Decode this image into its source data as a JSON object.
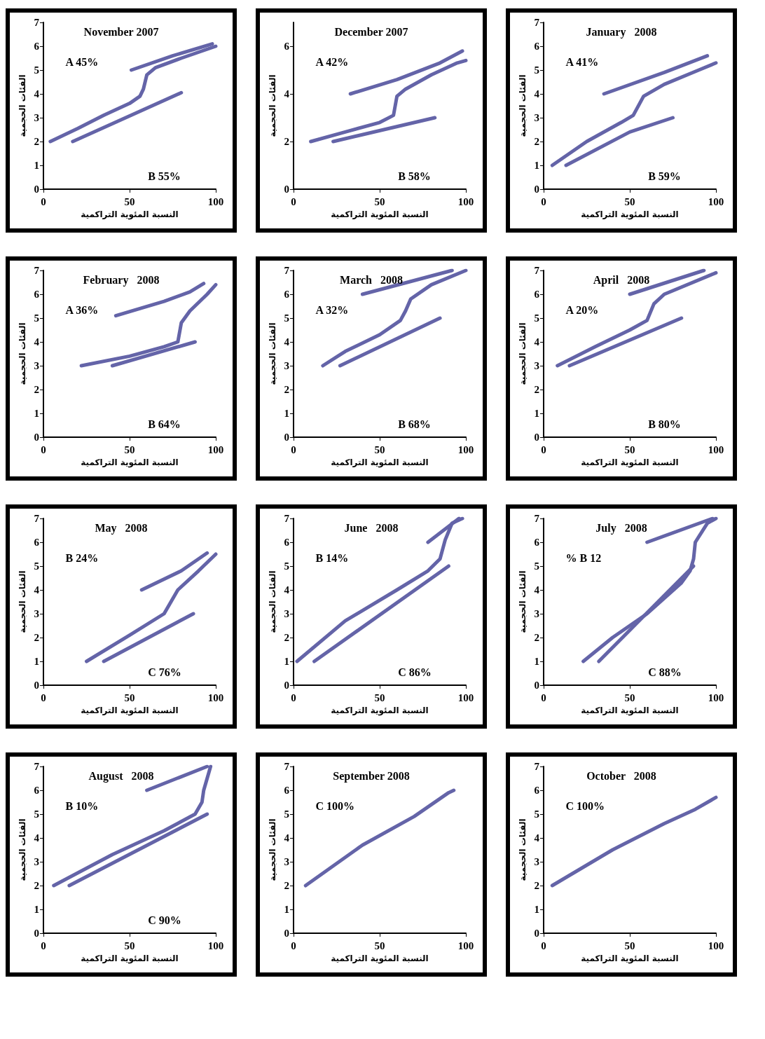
{
  "chart_data": [
    {
      "type": "line",
      "title": "November 2007",
      "xlabel": "النسبة المئوية التراكمية",
      "ylabel": "الفئات الحجمية",
      "annotations": [
        "A 45%",
        "B 55%"
      ],
      "xlim": [
        0,
        100
      ],
      "xticks": [
        0,
        50,
        100
      ],
      "ylim": [
        0,
        7
      ],
      "yticks": [
        0,
        1,
        2,
        3,
        4,
        5,
        6,
        7
      ],
      "grid": false,
      "marker": "none",
      "line_style": "solid",
      "series": [
        {
          "color": "#6464a8",
          "x": [
            4,
            20,
            35,
            50,
            56,
            58,
            60,
            65,
            80,
            100
          ],
          "values": [
            2,
            2.55,
            3.1,
            3.6,
            3.9,
            4.2,
            4.8,
            5.1,
            5.5,
            6
          ]
        },
        {
          "color": "#6464a8",
          "x": [
            51,
            75,
            98
          ],
          "values": [
            5,
            5.6,
            6.1
          ]
        },
        {
          "color": "#6464a8",
          "x": [
            17,
            80
          ],
          "values": [
            2,
            4.05
          ]
        }
      ]
    },
    {
      "type": "line",
      "title": "December 2007",
      "xlabel": "النسبة المئوية التراكمية",
      "ylabel": "الفئات الحجمية",
      "annotations": [
        "A 42%",
        "B 58%"
      ],
      "xlim": [
        0,
        100
      ],
      "xticks": [
        0,
        50,
        100
      ],
      "ylim": [
        0,
        7
      ],
      "yticks": [
        0,
        2,
        4,
        6
      ],
      "grid": false,
      "marker": "none",
      "line_style": "solid",
      "series": [
        {
          "color": "#6464a8",
          "x": [
            10,
            30,
            50,
            58,
            60,
            65,
            80,
            95,
            100
          ],
          "values": [
            2,
            2.4,
            2.8,
            3.1,
            3.9,
            4.2,
            4.8,
            5.3,
            5.4
          ]
        },
        {
          "color": "#6464a8",
          "x": [
            33,
            60,
            85,
            98
          ],
          "values": [
            4,
            4.6,
            5.3,
            5.8
          ]
        },
        {
          "color": "#6464a8",
          "x": [
            23,
            82
          ],
          "values": [
            2,
            3
          ]
        }
      ]
    },
    {
      "type": "line",
      "title": "January   2008",
      "xlabel": "النسبة المئوية التراكمية",
      "ylabel": "الفئات الحجمية",
      "annotations": [
        "A 41%",
        "B 59%"
      ],
      "xlim": [
        0,
        100
      ],
      "xticks": [
        0,
        50,
        100
      ],
      "ylim": [
        0,
        7
      ],
      "yticks": [
        0,
        1,
        2,
        3,
        4,
        5,
        6,
        7
      ],
      "grid": false,
      "marker": "none",
      "line_style": "solid",
      "series": [
        {
          "color": "#6464a8",
          "x": [
            5,
            25,
            45,
            52,
            58,
            70,
            90,
            100
          ],
          "values": [
            1,
            2,
            2.8,
            3.1,
            3.9,
            4.4,
            5,
            5.3
          ]
        },
        {
          "color": "#6464a8",
          "x": [
            35,
            70,
            95
          ],
          "values": [
            4,
            4.9,
            5.6
          ]
        },
        {
          "color": "#6464a8",
          "x": [
            13,
            50,
            75
          ],
          "values": [
            1,
            2.4,
            3
          ]
        }
      ]
    },
    {
      "type": "line",
      "title": "February   2008",
      "xlabel": "النسبة المئوية التراكمية",
      "ylabel": "الفئات الحجمية",
      "annotations": [
        "A 36%",
        "B 64%"
      ],
      "xlim": [
        0,
        100
      ],
      "xticks": [
        0,
        50,
        100
      ],
      "ylim": [
        0,
        7
      ],
      "yticks": [
        0,
        1,
        2,
        3,
        4,
        5,
        6,
        7
      ],
      "grid": false,
      "marker": "none",
      "line_style": "solid",
      "series": [
        {
          "color": "#6464a8",
          "x": [
            22,
            50,
            70,
            78,
            80,
            85,
            95,
            100
          ],
          "values": [
            3,
            3.4,
            3.8,
            4,
            4.8,
            5.3,
            6,
            6.4
          ]
        },
        {
          "color": "#6464a8",
          "x": [
            42,
            70,
            85,
            93
          ],
          "values": [
            5.1,
            5.7,
            6.1,
            6.45
          ]
        },
        {
          "color": "#6464a8",
          "x": [
            40,
            88
          ],
          "values": [
            3,
            4
          ]
        }
      ]
    },
    {
      "type": "line",
      "title": "March   2008",
      "xlabel": "النسبة المئوية التراكمية",
      "ylabel": "الفئات الحجمية",
      "annotations": [
        "A 32%",
        "B 68%"
      ],
      "xlim": [
        0,
        100
      ],
      "xticks": [
        0,
        50,
        100
      ],
      "ylim": [
        0,
        7
      ],
      "yticks": [
        0,
        1,
        2,
        3,
        4,
        5,
        6,
        7
      ],
      "grid": false,
      "marker": "none",
      "line_style": "solid",
      "series": [
        {
          "color": "#6464a8",
          "x": [
            17,
            30,
            50,
            62,
            65,
            68,
            80,
            100
          ],
          "values": [
            3,
            3.6,
            4.3,
            4.9,
            5.3,
            5.8,
            6.4,
            7
          ]
        },
        {
          "color": "#6464a8",
          "x": [
            40,
            92
          ],
          "values": [
            6,
            7
          ]
        },
        {
          "color": "#6464a8",
          "x": [
            27,
            85
          ],
          "values": [
            3,
            5
          ]
        }
      ]
    },
    {
      "type": "line",
      "title": "April   2008",
      "xlabel": "النسبة المئوية التراكمية",
      "ylabel": "الفئات الحجمية",
      "annotations": [
        "A 20%",
        "B 80%"
      ],
      "xlim": [
        0,
        100
      ],
      "xticks": [
        0,
        50,
        100
      ],
      "ylim": [
        0,
        7
      ],
      "yticks": [
        0,
        1,
        2,
        3,
        4,
        5,
        6,
        7
      ],
      "grid": false,
      "marker": "none",
      "line_style": "solid",
      "series": [
        {
          "color": "#6464a8",
          "x": [
            8,
            30,
            50,
            60,
            64,
            70,
            100
          ],
          "values": [
            3,
            3.8,
            4.5,
            4.9,
            5.6,
            6,
            6.9
          ]
        },
        {
          "color": "#6464a8",
          "x": [
            50,
            93
          ],
          "values": [
            6,
            7
          ]
        },
        {
          "color": "#6464a8",
          "x": [
            15,
            80
          ],
          "values": [
            3,
            5
          ]
        }
      ]
    },
    {
      "type": "line",
      "title": "May   2008",
      "xlabel": "النسبة المئوية التراكمية",
      "ylabel": "الفئات الحجمية",
      "annotations": [
        "B 24%",
        "C 76%"
      ],
      "xlim": [
        0,
        100
      ],
      "xticks": [
        0,
        50,
        100
      ],
      "ylim": [
        0,
        7
      ],
      "yticks": [
        0,
        1,
        2,
        3,
        4,
        5,
        6,
        7
      ],
      "grid": false,
      "marker": "none",
      "line_style": "solid",
      "series": [
        {
          "color": "#6464a8",
          "x": [
            25,
            50,
            70,
            74,
            78,
            90,
            100
          ],
          "values": [
            1,
            2.1,
            3,
            3.5,
            4,
            4.8,
            5.5
          ]
        },
        {
          "color": "#6464a8",
          "x": [
            57,
            80,
            95
          ],
          "values": [
            4,
            4.8,
            5.55
          ]
        },
        {
          "color": "#6464a8",
          "x": [
            35,
            87
          ],
          "values": [
            1,
            3
          ]
        }
      ]
    },
    {
      "type": "line",
      "title": "June   2008",
      "xlabel": "النسبة المئوية التراكمية",
      "ylabel": "الفئات الحجمية",
      "annotations": [
        "B 14%",
        "C 86%"
      ],
      "xlim": [
        0,
        100
      ],
      "xticks": [
        0,
        50,
        100
      ],
      "ylim": [
        0,
        7
      ],
      "yticks": [
        0,
        1,
        2,
        3,
        4,
        5,
        6,
        7
      ],
      "grid": false,
      "marker": "none",
      "line_style": "solid",
      "series": [
        {
          "color": "#6464a8",
          "x": [
            2,
            30,
            60,
            78,
            85,
            88,
            92,
            98
          ],
          "values": [
            1,
            2.7,
            4,
            4.8,
            5.3,
            6.1,
            6.8,
            7
          ]
        },
        {
          "color": "#6464a8",
          "x": [
            78,
            96
          ],
          "values": [
            6,
            7
          ]
        },
        {
          "color": "#6464a8",
          "x": [
            12,
            90
          ],
          "values": [
            1,
            5
          ]
        }
      ]
    },
    {
      "type": "line",
      "title": "July   2008",
      "xlabel": "النسبة المئوية التراكمية",
      "ylabel": "الفئات الحجمية",
      "annotations": [
        "% B 12",
        "C 88%"
      ],
      "xlim": [
        0,
        100
      ],
      "xticks": [
        0,
        50,
        100
      ],
      "ylim": [
        0,
        7
      ],
      "yticks": [
        0,
        1,
        2,
        3,
        4,
        5,
        6,
        7
      ],
      "grid": false,
      "marker": "none",
      "line_style": "solid",
      "series": [
        {
          "color": "#6464a8",
          "x": [
            23,
            40,
            60,
            80,
            85,
            87,
            88,
            95,
            100
          ],
          "values": [
            1,
            2,
            3,
            4.3,
            4.8,
            5.3,
            6,
            6.8,
            7
          ]
        },
        {
          "color": "#6464a8",
          "x": [
            60,
            98
          ],
          "values": [
            6,
            7
          ]
        },
        {
          "color": "#6464a8",
          "x": [
            32,
            87
          ],
          "values": [
            1,
            5
          ]
        }
      ]
    },
    {
      "type": "line",
      "title": "August   2008",
      "xlabel": "النسبة المئوية التراكمية",
      "ylabel": "الفئات الحجمية",
      "annotations": [
        "B 10%",
        "C 90%"
      ],
      "xlim": [
        0,
        100
      ],
      "xticks": [
        0,
        50,
        100
      ],
      "ylim": [
        0,
        7
      ],
      "yticks": [
        0,
        1,
        2,
        3,
        4,
        5,
        6,
        7
      ],
      "grid": false,
      "marker": "none",
      "line_style": "solid",
      "series": [
        {
          "color": "#6464a8",
          "x": [
            6,
            40,
            70,
            88,
            92,
            93,
            97
          ],
          "values": [
            2,
            3.3,
            4.3,
            5,
            5.5,
            6,
            7
          ]
        },
        {
          "color": "#6464a8",
          "x": [
            60,
            95
          ],
          "values": [
            6,
            7
          ]
        },
        {
          "color": "#6464a8",
          "x": [
            15,
            95
          ],
          "values": [
            2,
            5
          ]
        }
      ]
    },
    {
      "type": "line",
      "title": "September 2008",
      "xlabel": "النسبة المئوية التراكمية",
      "ylabel": "الفئات الحجمية",
      "annotations": [
        "C 100%"
      ],
      "xlim": [
        0,
        100
      ],
      "xticks": [
        0,
        50,
        100
      ],
      "ylim": [
        0,
        7
      ],
      "yticks": [
        0,
        1,
        2,
        3,
        4,
        5,
        6,
        7
      ],
      "grid": false,
      "marker": "none",
      "line_style": "solid",
      "series": [
        {
          "color": "#6464a8",
          "x": [
            7,
            40,
            70,
            90,
            93
          ],
          "values": [
            2,
            3.7,
            4.9,
            5.9,
            6
          ]
        }
      ]
    },
    {
      "type": "line",
      "title": "October   2008",
      "xlabel": "النسبة المئوية التراكمية",
      "ylabel": "الفئات الحجمية",
      "annotations": [
        "C 100%"
      ],
      "xlim": [
        0,
        100
      ],
      "xticks": [
        0,
        50,
        100
      ],
      "ylim": [
        0,
        7
      ],
      "yticks": [
        0,
        1,
        2,
        3,
        4,
        5,
        6,
        7
      ],
      "grid": false,
      "marker": "none",
      "line_style": "solid",
      "series": [
        {
          "color": "#6464a8",
          "x": [
            5,
            40,
            70,
            88,
            100
          ],
          "values": [
            2,
            3.5,
            4.6,
            5.2,
            5.7
          ]
        }
      ]
    }
  ]
}
